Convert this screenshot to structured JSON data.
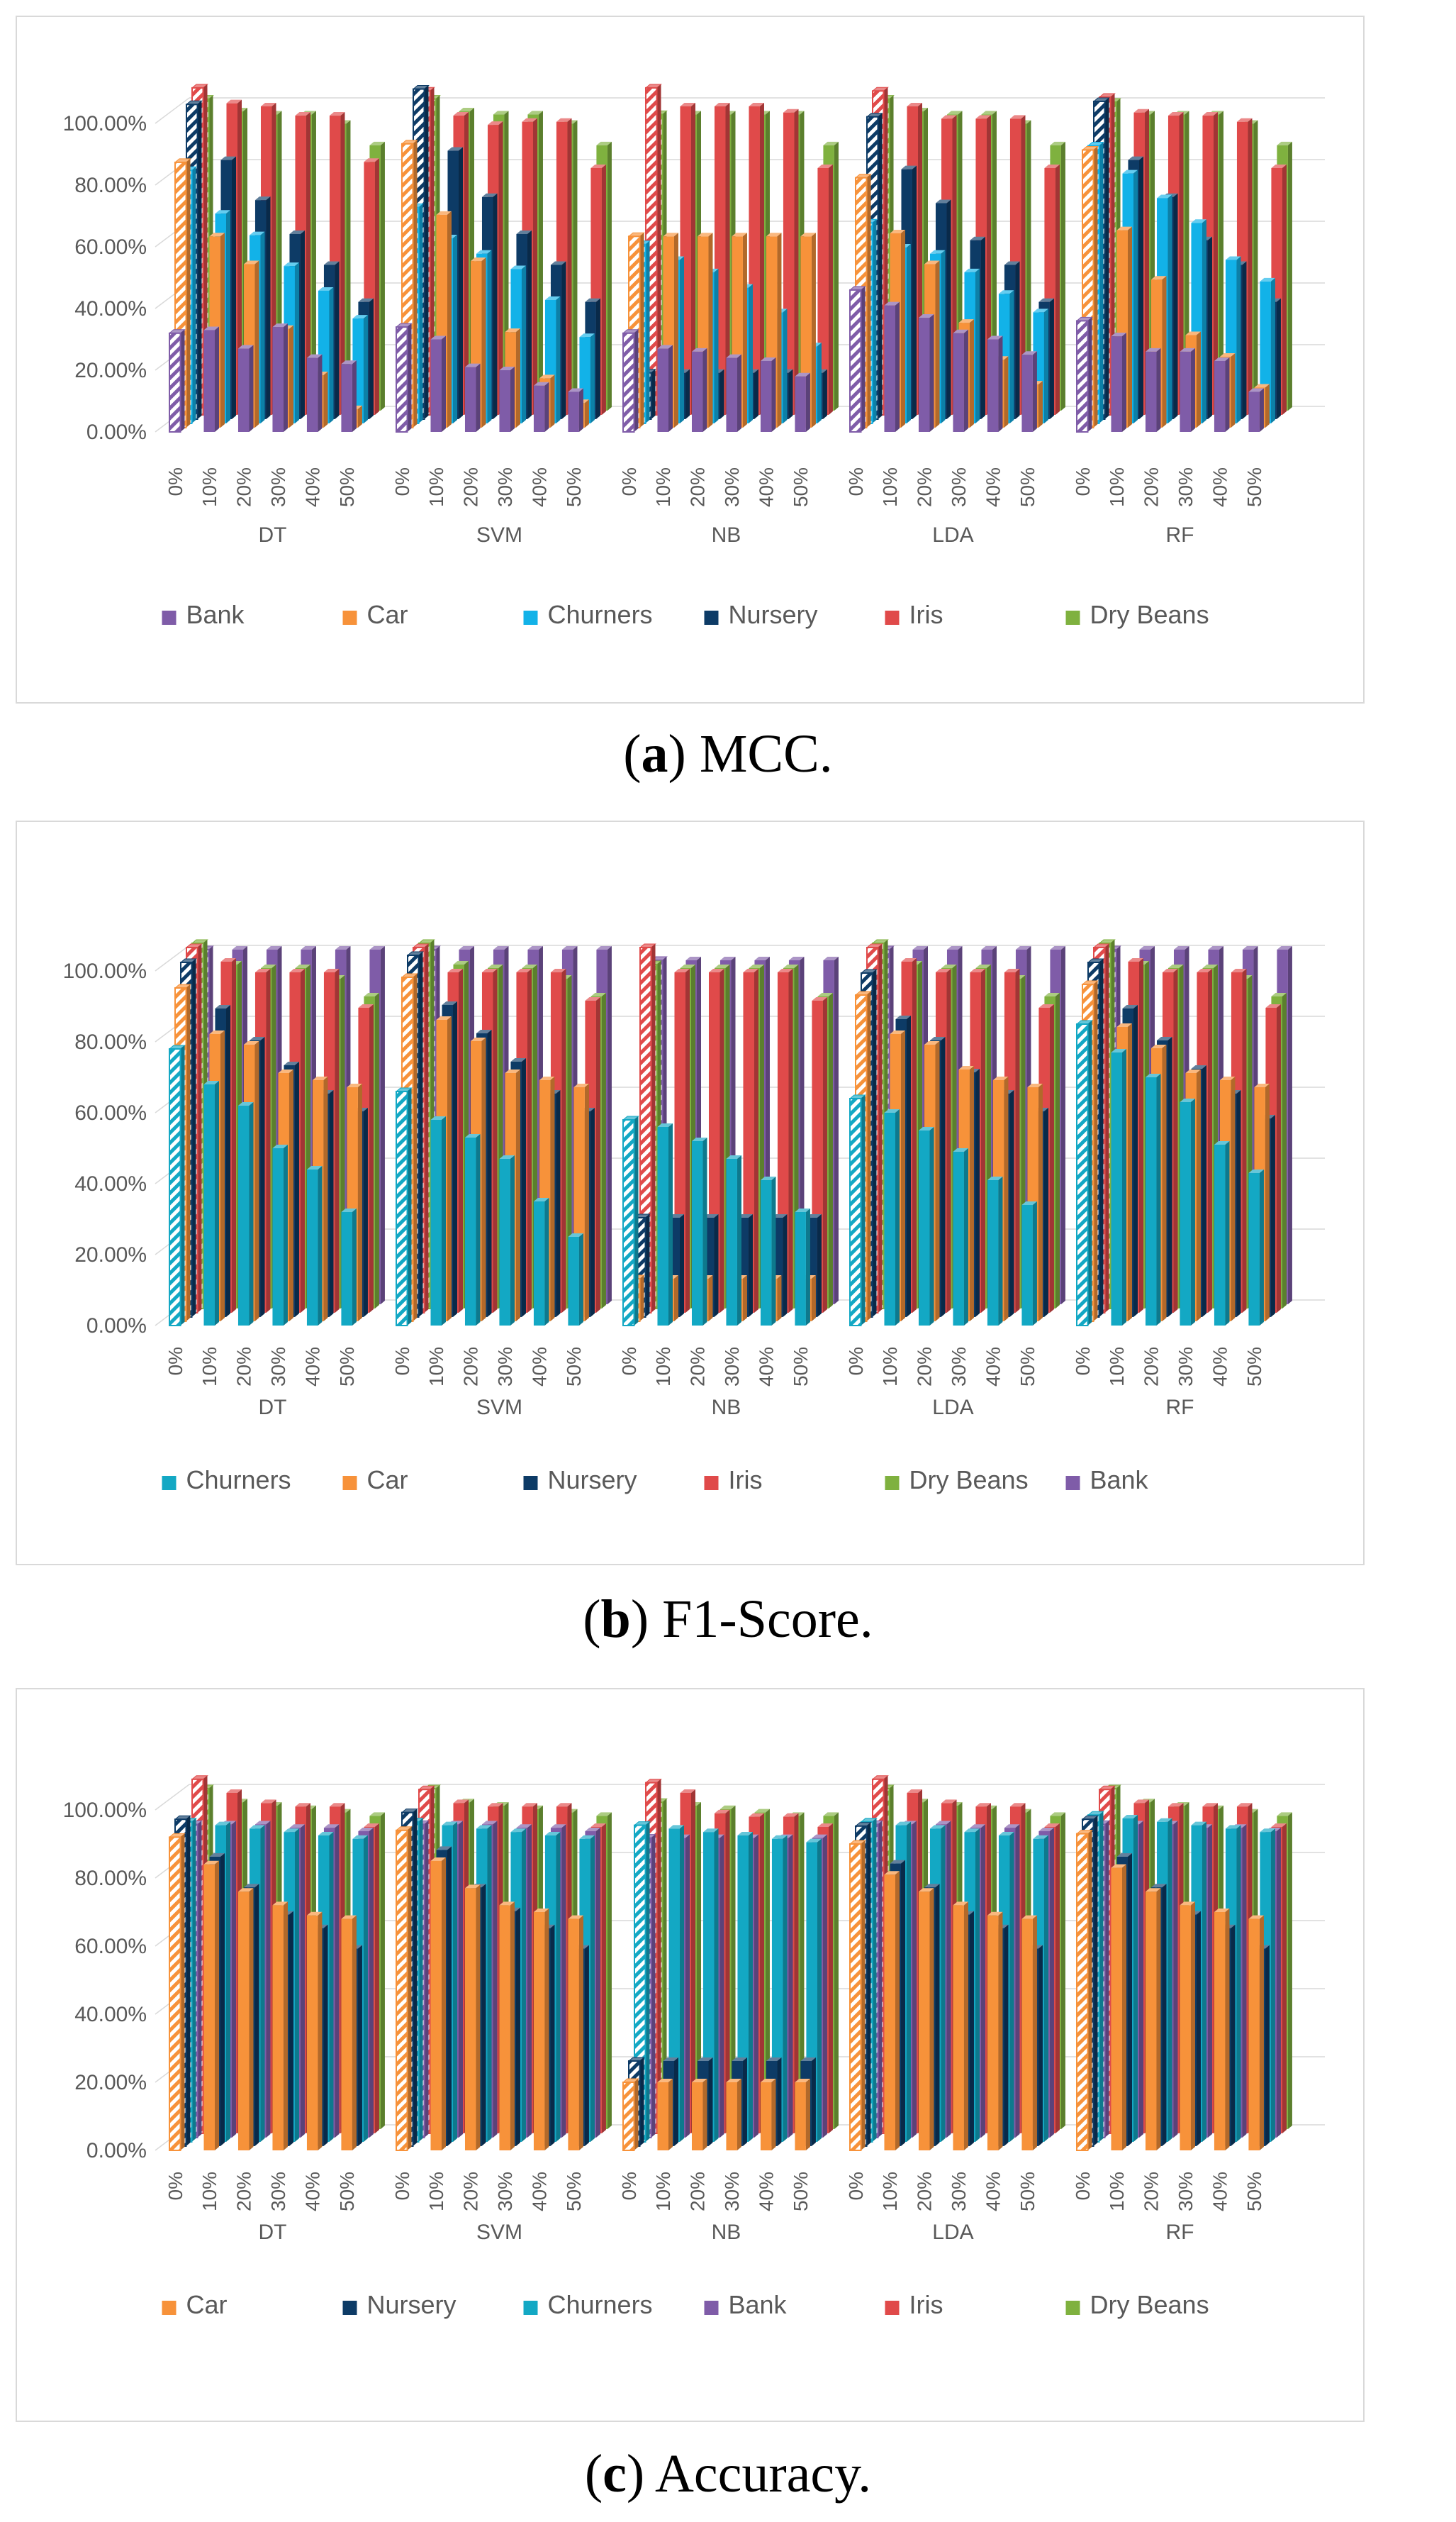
{
  "panels": [
    {
      "caption_letter": "a",
      "caption_text": "MCC.",
      "chart_data": {
        "type": "bar",
        "title": "",
        "groups": [
          "DT",
          "SVM",
          "NB",
          "LDA",
          "RF"
        ],
        "categories": [
          "0%",
          "10%",
          "20%",
          "30%",
          "40%",
          "50%"
        ],
        "y_ticks": [
          "0.00%",
          "20.00%",
          "40.00%",
          "60.00%",
          "80.00%",
          "100.00%"
        ],
        "ylim": [
          0,
          100
        ],
        "legend_position": "bottom",
        "series": [
          {
            "name": "Bank",
            "color": "#7f5ca8",
            "values": [
              [
                32,
                33,
                27,
                34,
                24,
                22
              ],
              [
                34,
                30,
                21,
                20,
                15,
                13
              ],
              [
                32,
                27,
                26,
                24,
                23,
                18
              ],
              [
                46,
                41,
                37,
                32,
                30,
                25
              ],
              [
                36,
                31,
                26,
                26,
                23,
                13
              ]
            ]
          },
          {
            "name": "Car",
            "color": "#f7923a",
            "values": [
              [
                86,
                62,
                53,
                32,
                17,
                6
              ],
              [
                92,
                69,
                54,
                31,
                16,
                8
              ],
              [
                62,
                62,
                62,
                62,
                62,
                62
              ],
              [
                81,
                63,
                53,
                34,
                22,
                14
              ],
              [
                90,
                64,
                48,
                30,
                23,
                13
              ]
            ]
          },
          {
            "name": "Churners",
            "color": "#12b2e8",
            "values": [
              [
                82,
                68,
                61,
                51,
                43,
                34
              ],
              [
                70,
                60,
                55,
                50,
                40,
                28
              ],
              [
                58,
                53,
                49,
                44,
                36,
                25
              ],
              [
                65,
                57,
                55,
                49,
                42,
                36
              ],
              [
                90,
                81,
                73,
                65,
                53,
                46
              ]
            ]
          },
          {
            "name": "Nursery",
            "color": "#0d3b66",
            "values": [
              [
                102,
                84,
                71,
                60,
                50,
                38
              ],
              [
                107,
                87,
                72,
                60,
                50,
                38
              ],
              [
                15,
                15,
                15,
                15,
                15,
                15
              ],
              [
                98,
                81,
                70,
                58,
                50,
                38
              ],
              [
                103,
                84,
                72,
                58,
                50,
                38
              ]
            ]
          },
          {
            "name": "Iris",
            "color": "#e04a4a",
            "values": [
              [
                106,
                101,
                100,
                97,
                97,
                82
              ],
              [
                105,
                97,
                94,
                95,
                95,
                80
              ],
              [
                106,
                100,
                100,
                100,
                98,
                80
              ],
              [
                105,
                100,
                96,
                96,
                96,
                80
              ],
              [
                103,
                98,
                97,
                97,
                95,
                80
              ]
            ]
          },
          {
            "name": "Dry Beans",
            "color": "#7fb13f",
            "values": [
              [
                101,
                97,
                96,
                96,
                93,
                86
              ],
              [
                101,
                97,
                96,
                96,
                93,
                86
              ],
              [
                96,
                96,
                96,
                96,
                96,
                86
              ],
              [
                101,
                97,
                96,
                96,
                93,
                86
              ],
              [
                100,
                96,
                96,
                96,
                93,
                86
              ]
            ]
          }
        ]
      }
    },
    {
      "caption_letter": "b",
      "caption_text": "F1-Score.",
      "chart_data": {
        "type": "bar",
        "title": "",
        "groups": [
          "DT",
          "SVM",
          "NB",
          "LDA",
          "RF"
        ],
        "categories": [
          "0%",
          "10%",
          "20%",
          "30%",
          "40%",
          "50%"
        ],
        "y_ticks": [
          "0.00%",
          "20.00%",
          "40.00%",
          "60.00%",
          "80.00%",
          "100.00%"
        ],
        "ylim": [
          0,
          100
        ],
        "legend_position": "bottom",
        "series": [
          {
            "name": "Churners",
            "color": "#13a8c4",
            "values": [
              [
                78,
                68,
                62,
                50,
                44,
                32
              ],
              [
                66,
                58,
                53,
                47,
                35,
                25
              ],
              [
                58,
                56,
                52,
                47,
                41,
                32
              ],
              [
                64,
                60,
                55,
                49,
                41,
                34
              ],
              [
                85,
                77,
                70,
                63,
                51,
                43
              ]
            ]
          },
          {
            "name": "Car",
            "color": "#f7923a",
            "values": [
              [
                94,
                81,
                78,
                70,
                68,
                66
              ],
              [
                97,
                85,
                79,
                70,
                68,
                66
              ],
              [
                12,
                12,
                12,
                12,
                12,
                12
              ],
              [
                92,
                81,
                78,
                71,
                68,
                66
              ],
              [
                95,
                83,
                77,
                70,
                68,
                66
              ]
            ]
          },
          {
            "name": "Nursery",
            "color": "#0d3b66",
            "values": [
              [
                100,
                87,
                78,
                71,
                63,
                58
              ],
              [
                102,
                88,
                80,
                72,
                63,
                58
              ],
              [
                28,
                28,
                28,
                28,
                28,
                28
              ],
              [
                97,
                84,
                78,
                69,
                63,
                58
              ],
              [
                100,
                87,
                78,
                70,
                63,
                56
              ]
            ]
          },
          {
            "name": "Iris",
            "color": "#e04a4a",
            "values": [
              [
                103,
                99,
                96,
                96,
                96,
                86
              ],
              [
                103,
                96,
                96,
                96,
                96,
                88
              ],
              [
                103,
                96,
                96,
                96,
                96,
                88
              ],
              [
                103,
                99,
                96,
                96,
                96,
                86
              ],
              [
                103,
                99,
                96,
                96,
                96,
                86
              ]
            ]
          },
          {
            "name": "Dry Beans",
            "color": "#7fb13f",
            "values": [
              [
                103,
                97,
                96,
                96,
                93,
                88
              ],
              [
                103,
                97,
                96,
                96,
                93,
                88
              ],
              [
                97,
                96,
                96,
                96,
                96,
                88
              ],
              [
                103,
                97,
                96,
                96,
                93,
                88
              ],
              [
                103,
                97,
                96,
                96,
                93,
                88
              ]
            ]
          },
          {
            "name": "Bank",
            "color": "#7f5ca8",
            "values": [
              [
                100,
                100,
                100,
                100,
                100,
                100
              ],
              [
                100,
                100,
                100,
                100,
                100,
                100
              ],
              [
                97,
                97,
                97,
                97,
                97,
                97
              ],
              [
                100,
                100,
                100,
                100,
                100,
                100
              ],
              [
                100,
                100,
                100,
                100,
                100,
                100
              ]
            ]
          }
        ]
      }
    },
    {
      "caption_letter": "c",
      "caption_text": "Accuracy.",
      "chart_data": {
        "type": "bar",
        "title": "",
        "groups": [
          "DT",
          "SVM",
          "NB",
          "LDA",
          "RF"
        ],
        "categories": [
          "0%",
          "10%",
          "20%",
          "30%",
          "40%",
          "50%"
        ],
        "y_ticks": [
          "0.00%",
          "20.00%",
          "40.00%",
          "60.00%",
          "80.00%",
          "100.00%"
        ],
        "ylim": [
          0,
          100
        ],
        "legend_position": "bottom",
        "series": [
          {
            "name": "Car",
            "color": "#f7923a",
            "values": [
              [
                92,
                84,
                76,
                72,
                69,
                68
              ],
              [
                94,
                85,
                77,
                72,
                70,
                68
              ],
              [
                20,
                20,
                20,
                20,
                20,
                20
              ],
              [
                90,
                81,
                76,
                72,
                69,
                68
              ],
              [
                93,
                83,
                76,
                72,
                70,
                68
              ]
            ]
          },
          {
            "name": "Nursery",
            "color": "#0d3b66",
            "values": [
              [
                96,
                85,
                76,
                68,
                64,
                58
              ],
              [
                98,
                87,
                76,
                69,
                64,
                58
              ],
              [
                25,
                25,
                25,
                25,
                25,
                25
              ],
              [
                94,
                83,
                76,
                68,
                64,
                58
              ],
              [
                96,
                85,
                76,
                68,
                64,
                58
              ]
            ]
          },
          {
            "name": "Churners",
            "color": "#13a8c4",
            "values": [
              [
                94,
                93,
                92,
                91,
                90,
                89
              ],
              [
                94,
                93,
                92,
                91,
                90,
                89
              ],
              [
                93,
                92,
                91,
                90,
                89,
                88
              ],
              [
                94,
                93,
                92,
                91,
                90,
                89
              ],
              [
                96,
                95,
                94,
                93,
                92,
                91
              ]
            ]
          },
          {
            "name": "Bank",
            "color": "#7f5ca8",
            "values": [
              [
                92,
                92,
                92,
                91,
                91,
                90
              ],
              [
                92,
                92,
                92,
                91,
                91,
                90
              ],
              [
                88,
                88,
                88,
                88,
                88,
                88
              ],
              [
                92,
                92,
                92,
                91,
                91,
                90
              ],
              [
                92,
                92,
                92,
                91,
                91,
                90
              ]
            ]
          },
          {
            "name": "Iris",
            "color": "#e04a4a",
            "values": [
              [
                104,
                100,
                97,
                96,
                96,
                90
              ],
              [
                101,
                97,
                96,
                96,
                96,
                90
              ],
              [
                103,
                100,
                94,
                93,
                93,
                90
              ],
              [
                104,
                100,
                97,
                96,
                96,
                90
              ],
              [
                101,
                97,
                96,
                96,
                96,
                90
              ]
            ]
          },
          {
            "name": "Dry Beans",
            "color": "#7fb13f",
            "values": [
              [
                100,
                96,
                95,
                94,
                93,
                92
              ],
              [
                100,
                96,
                95,
                94,
                93,
                92
              ],
              [
                96,
                95,
                94,
                93,
                92,
                92
              ],
              [
                100,
                96,
                95,
                94,
                93,
                92
              ],
              [
                100,
                96,
                95,
                94,
                93,
                92
              ]
            ]
          }
        ]
      }
    }
  ]
}
